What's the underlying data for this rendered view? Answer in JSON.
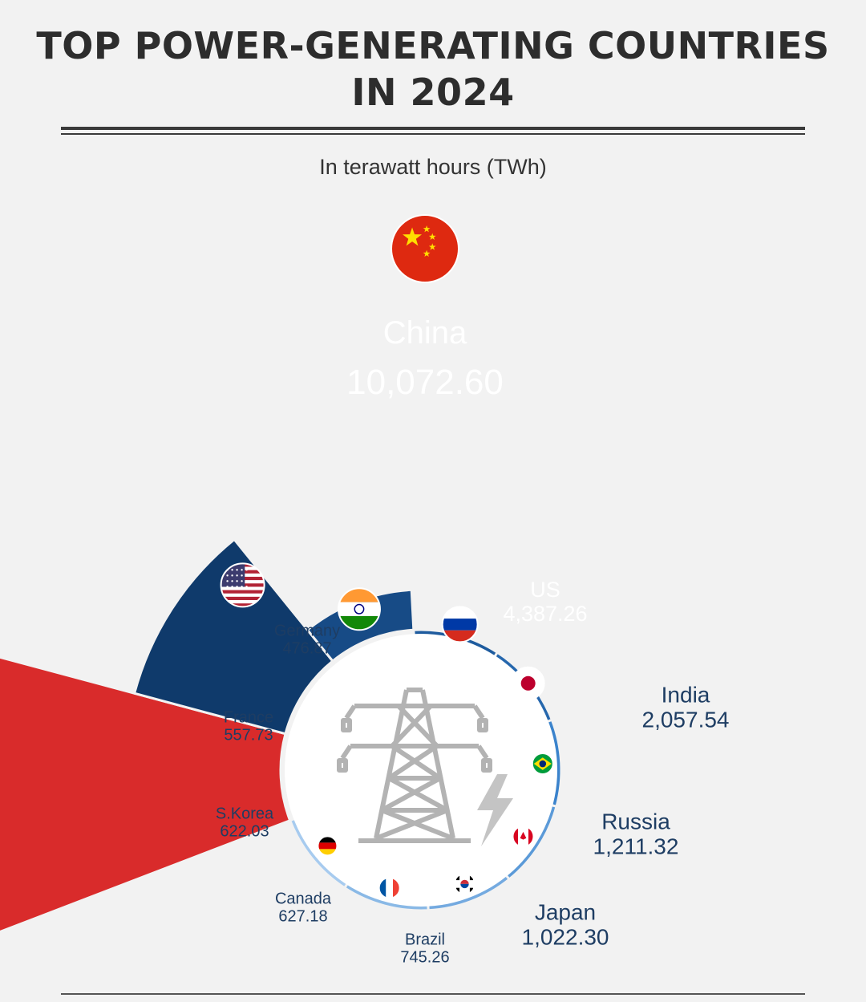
{
  "header": {
    "title_line1": "TOP POWER-GENERATING COUNTRIES",
    "title_line2": "IN 2024",
    "subtitle": "In terawatt hours (TWh)"
  },
  "chart_data": {
    "type": "radial-bar",
    "unit": "TWh",
    "series": [
      {
        "name": "China",
        "value": 10072.6,
        "label_value": "10,072.60",
        "flag": "china-flag",
        "color": "#d92b2b"
      },
      {
        "name": "US",
        "value": 4387.26,
        "label_value": "4,387.26",
        "flag": "usa-flag",
        "color": "#0f3a6b"
      },
      {
        "name": "India",
        "value": 2057.54,
        "label_value": "2,057.54",
        "flag": "india-flag",
        "color": "#174b86"
      },
      {
        "name": "Russia",
        "value": 1211.32,
        "label_value": "1,211.32",
        "flag": "russia-flag",
        "color": "#1e5b9e"
      },
      {
        "name": "Japan",
        "value": 1022.3,
        "label_value": "1,022.30",
        "flag": "japan-flag",
        "color": "#2667ad"
      },
      {
        "name": "Brazil",
        "value": 745.26,
        "label_value": "745.26",
        "flag": "brazil-flag",
        "color": "#3b83cc"
      },
      {
        "name": "Canada",
        "value": 627.18,
        "label_value": "627.18",
        "flag": "canada-flag",
        "color": "#5b9ad8"
      },
      {
        "name": "S.Korea",
        "value": 622.03,
        "label_value": "622.03",
        "flag": "skorea-flag",
        "color": "#74aae0"
      },
      {
        "name": "France",
        "value": 557.73,
        "label_value": "557.73",
        "flag": "france-flag",
        "color": "#8ab9e6"
      },
      {
        "name": "Germany",
        "value": 476.87,
        "label_value": "476.87",
        "flag": "germany-flag",
        "color": "#a7cbef"
      }
    ],
    "center_icon": "power-tower-icon"
  }
}
